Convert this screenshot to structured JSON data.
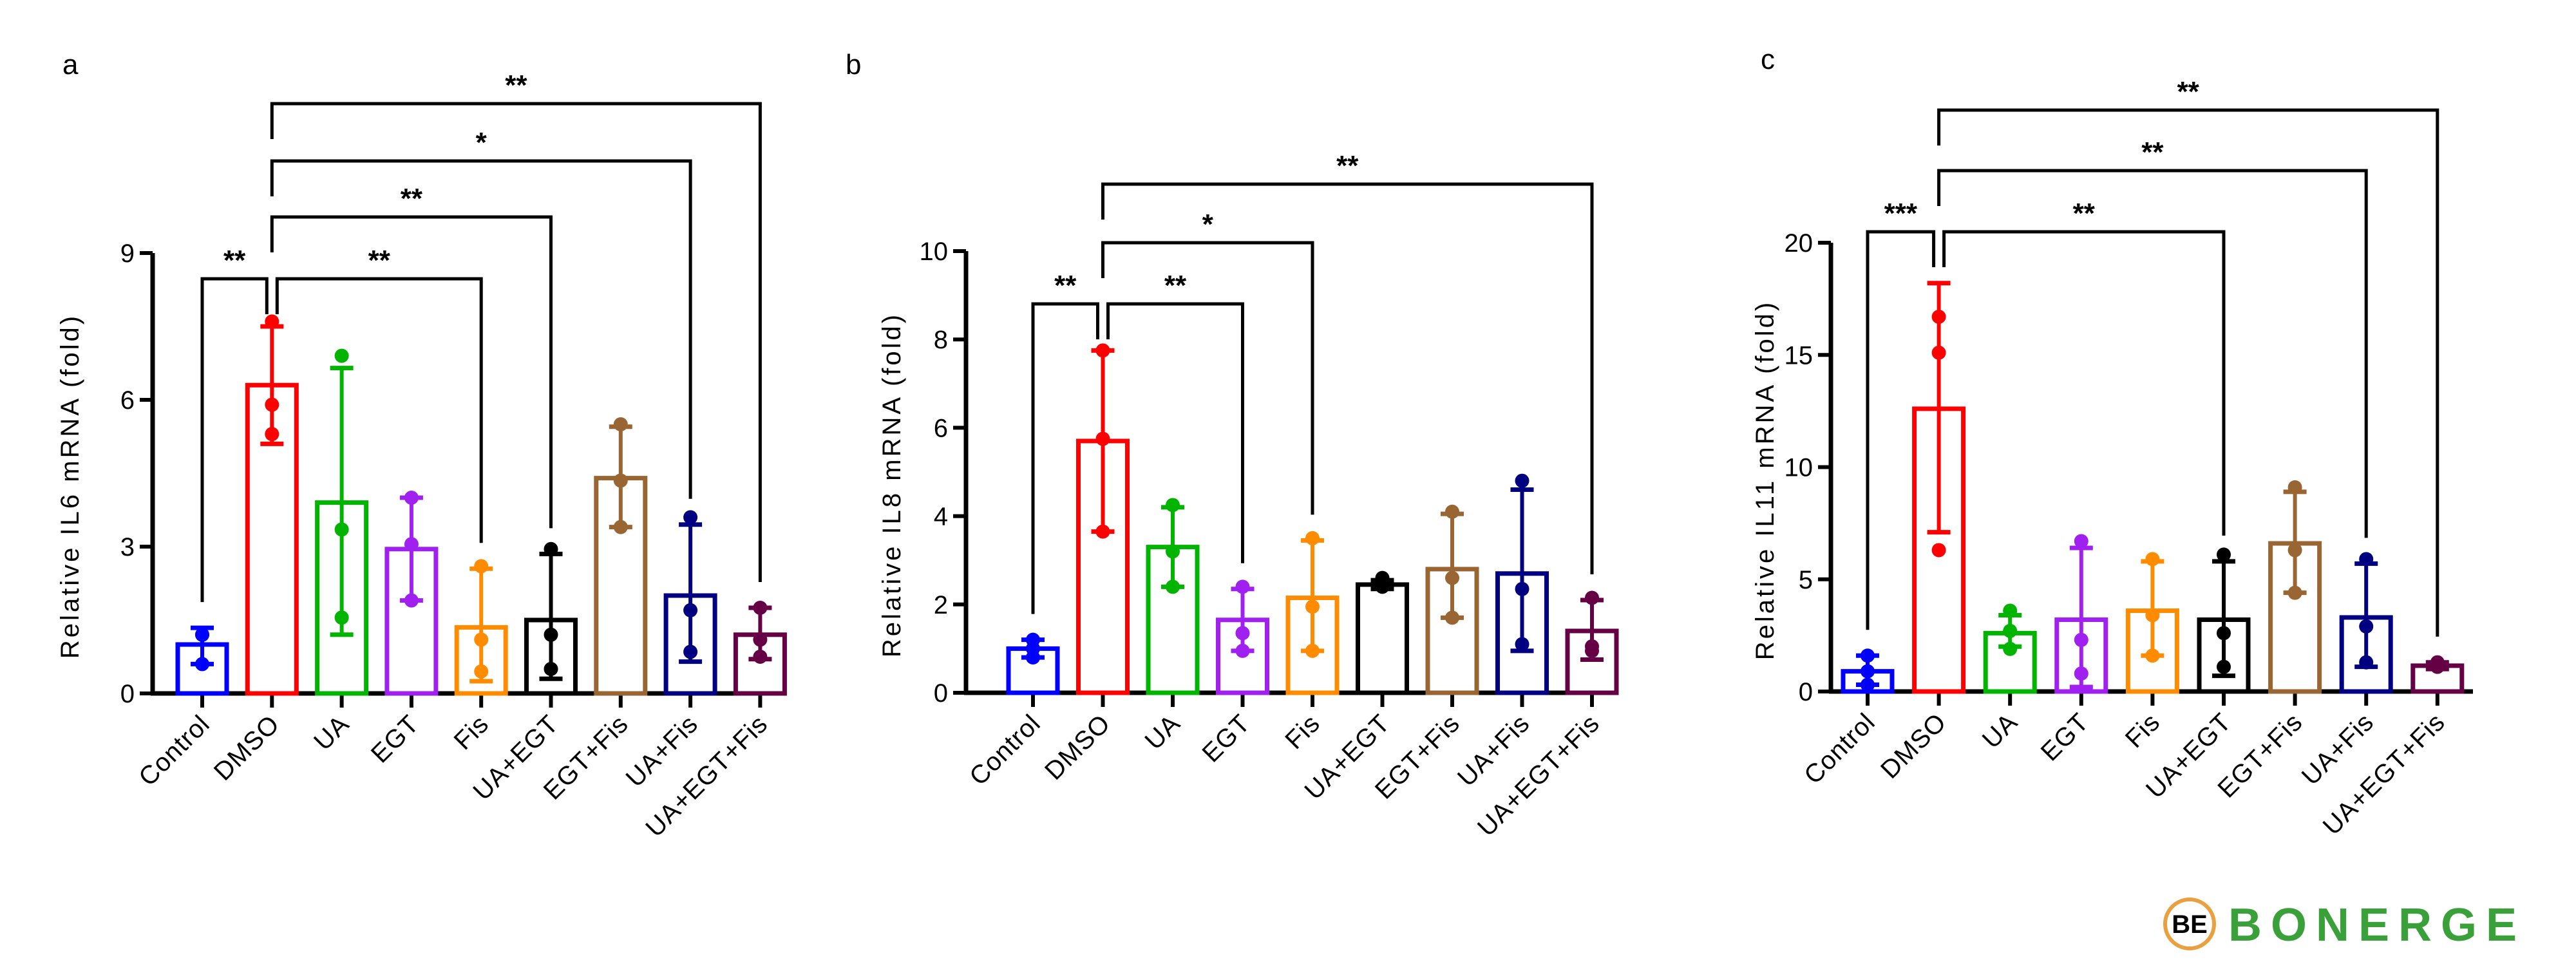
{
  "chart_data": [
    {
      "type": "bar",
      "panel_label": "a",
      "ylabel": "Relative IL6 mRNA (fold)",
      "ylim": [
        0,
        9
      ],
      "yticks": [
        0,
        3,
        6,
        9
      ],
      "grid": false,
      "categories": [
        "Control",
        "DMSO",
        "UA",
        "EGT",
        "Fis",
        "UA+EGT",
        "EGT+Fis",
        "UA+Fis",
        "UA+EGT+Fis"
      ],
      "values": [
        1.0,
        6.3,
        3.9,
        2.95,
        1.35,
        1.5,
        4.4,
        2.0,
        1.2
      ],
      "error_upper": [
        1.34,
        7.5,
        6.65,
        4.0,
        2.55,
        2.85,
        5.45,
        3.45,
        1.75
      ],
      "error_lower": [
        0.6,
        5.1,
        1.2,
        1.9,
        0.25,
        0.3,
        3.4,
        0.65,
        0.7
      ],
      "points": [
        [
          1.2,
          1.2,
          0.6
        ],
        [
          7.6,
          5.9,
          5.3
        ],
        [
          6.9,
          3.35,
          1.55
        ],
        [
          4.0,
          3.05,
          1.9
        ],
        [
          2.6,
          1.1,
          0.45
        ],
        [
          2.95,
          1.2,
          0.5
        ],
        [
          5.5,
          4.35,
          3.4
        ],
        [
          3.6,
          1.7,
          0.85
        ],
        [
          1.75,
          1.1,
          0.75
        ]
      ],
      "significance": [
        {
          "from": "Control",
          "to": "DMSO",
          "label": "**"
        },
        {
          "from": "DMSO",
          "to": "Fis",
          "label": "**"
        },
        {
          "from": "DMSO",
          "to": "UA+EGT",
          "label": "**"
        },
        {
          "from": "DMSO",
          "to": "UA+Fis",
          "label": "*"
        },
        {
          "from": "DMSO",
          "to": "UA+EGT+Fis",
          "label": "**"
        }
      ]
    },
    {
      "type": "bar",
      "panel_label": "b",
      "ylabel": "Relative IL8 mRNA (fold)",
      "ylim": [
        0,
        10
      ],
      "yticks": [
        0,
        2,
        4,
        6,
        8,
        10
      ],
      "grid": false,
      "categories": [
        "Control",
        "DMSO",
        "UA",
        "EGT",
        "Fis",
        "UA+EGT",
        "EGT+Fis",
        "UA+Fis",
        "UA+EGT+Fis"
      ],
      "values": [
        1.0,
        5.7,
        3.3,
        1.65,
        2.15,
        2.45,
        2.8,
        2.7,
        1.4
      ],
      "error_upper": [
        1.2,
        7.75,
        4.2,
        2.35,
        3.45,
        2.55,
        4.05,
        4.6,
        2.1
      ],
      "error_lower": [
        0.8,
        3.65,
        2.4,
        0.95,
        0.95,
        2.35,
        1.7,
        0.95,
        0.75
      ],
      "points": [
        [
          1.2,
          1.0,
          0.8
        ],
        [
          7.75,
          5.75,
          3.65
        ],
        [
          4.25,
          3.2,
          2.4
        ],
        [
          2.4,
          1.35,
          0.95
        ],
        [
          3.5,
          1.95,
          0.95
        ],
        [
          2.6,
          2.5,
          2.4
        ],
        [
          4.1,
          2.6,
          1.7
        ],
        [
          4.8,
          2.35,
          1.1
        ],
        [
          2.15,
          1.05,
          0.95
        ]
      ],
      "significance": [
        {
          "from": "Control",
          "to": "DMSO",
          "label": "**"
        },
        {
          "from": "DMSO",
          "to": "EGT",
          "label": "**"
        },
        {
          "from": "DMSO",
          "to": "Fis",
          "label": "*"
        },
        {
          "from": "DMSO",
          "to": "UA+EGT+Fis",
          "label": "**"
        }
      ]
    },
    {
      "type": "bar",
      "panel_label": "c",
      "ylabel": "Relative IL11 mRNA (fold)",
      "ylim": [
        0,
        20
      ],
      "yticks": [
        0,
        5,
        10,
        15,
        20
      ],
      "grid": false,
      "categories": [
        "Control",
        "DMSO",
        "UA",
        "EGT",
        "Fis",
        "UA+EGT",
        "EGT+Fis",
        "UA+Fis",
        "UA+EGT+Fis"
      ],
      "values": [
        0.9,
        12.6,
        2.6,
        3.2,
        3.6,
        3.2,
        6.6,
        3.3,
        1.15
      ],
      "error_upper": [
        1.6,
        18.2,
        3.4,
        6.4,
        5.8,
        5.8,
        8.9,
        5.7,
        1.3
      ],
      "error_lower": [
        0.3,
        7.1,
        2.0,
        0.2,
        1.6,
        0.7,
        4.4,
        1.1,
        1.0
      ],
      "points": [
        [
          1.6,
          0.9,
          0.3
        ],
        [
          16.7,
          15.1,
          6.3
        ],
        [
          3.6,
          2.7,
          1.9
        ],
        [
          6.7,
          2.3,
          0.8
        ],
        [
          5.9,
          3.4,
          1.6
        ],
        [
          6.1,
          2.6,
          1.1
        ],
        [
          9.1,
          6.3,
          4.4
        ],
        [
          5.9,
          2.9,
          1.3
        ],
        [
          1.3,
          1.2,
          1.1
        ]
      ],
      "significance": [
        {
          "from": "Control",
          "to": "DMSO",
          "label": "***"
        },
        {
          "from": "DMSO",
          "to": "UA+EGT",
          "label": "**"
        },
        {
          "from": "DMSO",
          "to": "UA+Fis",
          "label": "**"
        },
        {
          "from": "DMSO",
          "to": "UA+EGT+Fis",
          "label": "**"
        }
      ]
    }
  ],
  "colors": [
    "#0000ff",
    "#ff0000",
    "#00b400",
    "#a020f0",
    "#ff8c00",
    "#000000",
    "#996633",
    "#000080",
    "#660044"
  ],
  "logo": {
    "text": "BONERGE",
    "mark": "BE",
    "color": "#3aa13a"
  }
}
